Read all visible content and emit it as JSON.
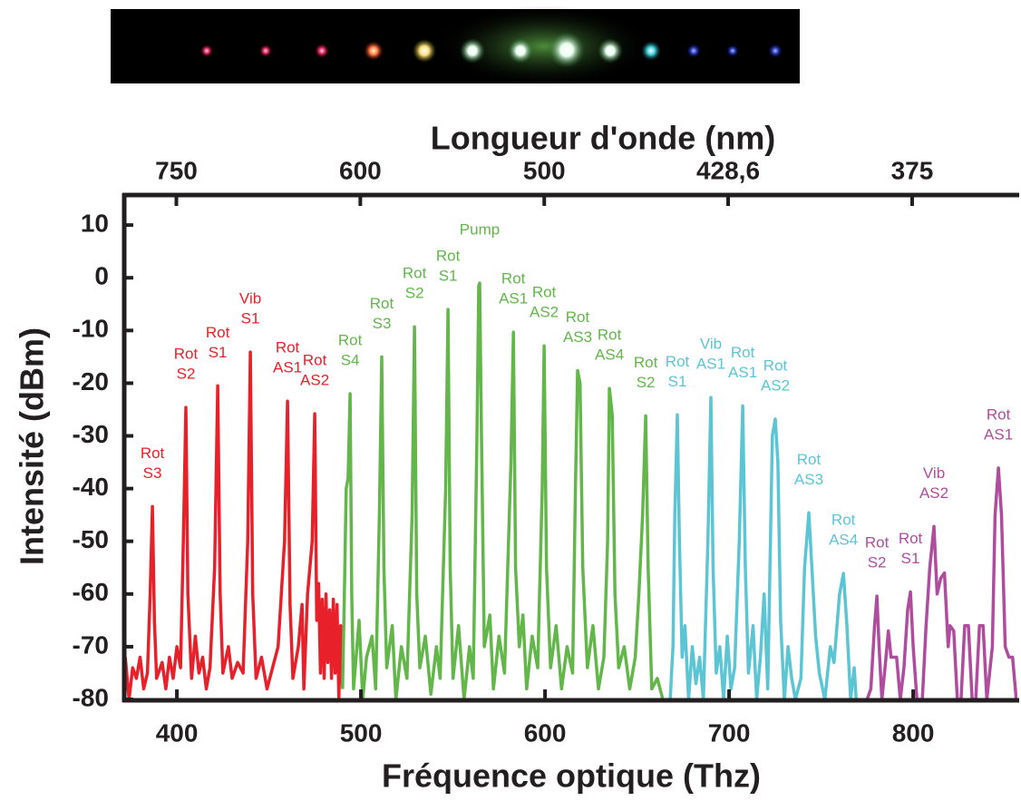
{
  "chart_data": {
    "type": "line",
    "title": "Longueur d'onde (nm)",
    "xlabel": "Fréquence optique (Thz)",
    "ylabel": "Intensité (dBm)",
    "xlim": [
      371.4,
      856.6
    ],
    "ylim": [
      -80,
      15.7
    ],
    "xticks": [
      400,
      500,
      600,
      700,
      800
    ],
    "yticks": [
      10,
      0,
      -10,
      -20,
      -30,
      -40,
      -50,
      -60,
      -70,
      -80
    ],
    "x2ticks": [
      {
        "value": 750,
        "label": "750"
      },
      {
        "value": 600,
        "label": "600"
      },
      {
        "value": 500,
        "label": "500"
      },
      {
        "value": 428.6,
        "label": "428,6"
      },
      {
        "value": 375,
        "label": "375"
      }
    ],
    "series": [
      {
        "color": "#e8202a",
        "x": [
          372,
          374,
          376,
          378,
          380,
          382,
          384,
          385.5,
          386.7,
          387.8,
          389,
          392,
          394,
          396,
          398,
          400,
          402,
          403.5,
          404.9,
          406,
          408,
          410,
          412,
          414,
          416,
          418,
          420.5,
          422.2,
          423.5,
          425,
          428,
          430,
          433,
          436,
          438.5,
          439.9,
          441.2,
          443,
          446,
          449,
          452,
          455,
          458.5,
          460.1,
          461.5,
          463,
          466,
          468,
          469,
          471,
          473.5,
          474.9,
          476,
          477,
          478,
          479,
          480,
          481,
          482,
          483,
          484,
          485,
          486,
          487,
          488,
          489,
          490
        ],
        "values": [
          -72,
          -80,
          -74,
          -76,
          -72,
          -78,
          -75,
          -60,
          -43.4,
          -65,
          -76,
          -73,
          -78,
          -72,
          -76,
          -70,
          -74,
          -50,
          -24.6,
          -60,
          -76,
          -68,
          -75,
          -72,
          -78,
          -74,
          -55,
          -20.5,
          -60,
          -75,
          -70,
          -76,
          -73,
          -75,
          -50,
          -14.1,
          -60,
          -76,
          -72,
          -78,
          -74,
          -70,
          -50,
          -23.4,
          -62,
          -76,
          -70,
          -62,
          -78,
          -60,
          -50,
          -25.8,
          -65,
          -58,
          -75,
          -61,
          -76,
          -60,
          -73,
          -63,
          -76,
          -61,
          -75,
          -62,
          -80,
          -66,
          -78
        ],
        "labels": [
          {
            "text": [
              "Rot",
              "S3"
            ],
            "x": 386.7,
            "y": -43.4
          },
          {
            "text": [
              "Rot",
              "S2"
            ],
            "x": 404.9,
            "y": -24.6
          },
          {
            "text": [
              "Rot",
              "S1"
            ],
            "x": 422.2,
            "y": -20.5
          },
          {
            "text": [
              "Vib",
              "S1"
            ],
            "x": 439.9,
            "y": -14.1
          },
          {
            "text": [
              "Rot",
              "AS1"
            ],
            "x": 460.1,
            "y": -23.4
          },
          {
            "text": [
              "Rot",
              "AS2"
            ],
            "x": 474.9,
            "y": -25.8
          }
        ]
      },
      {
        "color": "#62b64a",
        "x": [
          490,
          491,
          492,
          493,
          494.1,
          495,
          496,
          499,
          501,
          503,
          506,
          508,
          510,
          511.3,
          512.5,
          514,
          517,
          519,
          522,
          525,
          527.8,
          529.1,
          530.3,
          532,
          535,
          538,
          541,
          543,
          546,
          547.3,
          548.5,
          550,
          553,
          556,
          559,
          561,
          563,
          564,
          564.5,
          565.5,
          567,
          570,
          572,
          575,
          578,
          581.5,
          582.8,
          584,
          586,
          588,
          590,
          593,
          596,
          598.5,
          599.5,
          600.8,
          603,
          606,
          609,
          612,
          615,
          616.5,
          617.7,
          619,
          620.5,
          623,
          626,
          629,
          632,
          634,
          635,
          636.5,
          638,
          640,
          643,
          646,
          649,
          651,
          653,
          654.7,
          656,
          658,
          661,
          664
        ],
        "values": [
          -78,
          -60,
          -40,
          -38,
          -22,
          -60,
          -78,
          -65,
          -80,
          -72,
          -68,
          -78,
          -45,
          -15,
          -55,
          -74,
          -66,
          -80,
          -70,
          -76,
          -45,
          -9.3,
          -60,
          -74,
          -68,
          -79,
          -70,
          -76,
          -40,
          -6,
          -55,
          -76,
          -66,
          -80,
          -70,
          -76,
          -30,
          -1.5,
          -1,
          -30,
          -70,
          -64,
          -78,
          -68,
          -75,
          -35,
          -10.3,
          -55,
          -70,
          -64,
          -78,
          -68,
          -74,
          -40,
          -12.9,
          -55,
          -74,
          -66,
          -78,
          -70,
          -75,
          -40,
          -17.6,
          -20,
          -55,
          -74,
          -66,
          -78,
          -72,
          -50,
          -21,
          -26,
          -60,
          -74,
          -70,
          -78,
          -72,
          -60,
          -45,
          -26.2,
          -55,
          -78,
          -76,
          -80
        ],
        "labels": [
          {
            "text": [
              "Rot",
              "S4"
            ],
            "x": 494.1,
            "y": -22
          },
          {
            "text": [
              "Rot",
              "S3"
            ],
            "x": 511.3,
            "y": -15
          },
          {
            "text": [
              "Rot",
              "S2"
            ],
            "x": 529.1,
            "y": -9.3
          },
          {
            "text": [
              "Rot",
              "S1"
            ],
            "x": 547.3,
            "y": -6
          },
          {
            "text": [
              "Pump"
            ],
            "x": 564.5,
            "y": -1
          },
          {
            "text": [
              "Rot",
              "AS1"
            ],
            "x": 582.8,
            "y": -10.3
          },
          {
            "text": [
              "Rot",
              "AS2"
            ],
            "x": 599.5,
            "y": -12.9
          },
          {
            "text": [
              "Rot",
              "AS3"
            ],
            "x": 617.7,
            "y": -17.6
          },
          {
            "text": [
              "Rot",
              "AS4"
            ],
            "x": 635,
            "y": -21
          },
          {
            "text": [
              "Rot",
              "S2"
            ],
            "x": 654.7,
            "y": -26.2
          }
        ]
      },
      {
        "color": "#5bc5d4",
        "x": [
          668,
          669.5,
          670.5,
          671.9,
          673,
          674.5,
          676,
          678,
          680,
          682,
          684,
          686,
          688.5,
          690.1,
          691.3,
          693,
          695,
          697,
          699,
          701,
          703,
          705.5,
          707.4,
          708.8,
          710.5,
          713,
          715,
          717,
          719,
          721,
          723.5,
          725.1,
          726.5,
          728,
          730,
          732,
          734,
          736,
          739,
          741,
          743.3,
          745,
          747,
          749,
          752,
          755,
          757,
          760,
          762.1,
          764,
          766,
          768,
          769
        ],
        "values": [
          -80,
          -70,
          -45,
          -26,
          -50,
          -72,
          -66,
          -80,
          -70,
          -77,
          -72,
          -80,
          -50,
          -22.7,
          -55,
          -75,
          -70,
          -80,
          -68,
          -78,
          -74,
          -50,
          -24.3,
          -55,
          -75,
          -66,
          -80,
          -72,
          -60,
          -78,
          -30,
          -26.8,
          -35,
          -65,
          -80,
          -70,
          -76,
          -80,
          -76,
          -55,
          -44.6,
          -55,
          -68,
          -75,
          -80,
          -70,
          -73,
          -60,
          -56.1,
          -66,
          -80,
          -74,
          -80
        ],
        "labels": [
          {
            "text": [
              "Rot",
              "S1"
            ],
            "x": 671.9,
            "y": -26
          },
          {
            "text": [
              "Vib",
              "AS1"
            ],
            "x": 690.1,
            "y": -22.7
          },
          {
            "text": [
              "Rot",
              "AS1"
            ],
            "x": 707.4,
            "y": -24.3
          },
          {
            "text": [
              "Rot",
              "AS2"
            ],
            "x": 725.1,
            "y": -26.8
          },
          {
            "text": [
              "Rot",
              "AS3"
            ],
            "x": 743.3,
            "y": -44.6
          },
          {
            "text": [
              "Rot",
              "AS4"
            ],
            "x": 762.1,
            "y": -56.1
          }
        ]
      },
      {
        "color": "#b04c9e",
        "x": [
          775,
          777,
          779,
          780.3,
          781.5,
          783,
          785,
          786.5,
          788,
          791,
          793,
          795,
          797,
          798.5,
          800,
          802,
          805,
          807,
          809,
          811.3,
          813,
          815,
          817,
          819,
          820,
          822,
          824,
          826,
          828,
          830,
          832,
          834,
          836,
          838,
          840,
          843,
          844.5,
          846.3,
          848,
          850,
          852,
          854,
          856
        ],
        "values": [
          -80,
          -78,
          -66,
          -60.4,
          -70,
          -80,
          -73,
          -67,
          -72,
          -72,
          -80,
          -74,
          -63,
          -59.6,
          -70,
          -80,
          -80,
          -66,
          -55,
          -47.2,
          -60,
          -57,
          -56,
          -70,
          -66,
          -67,
          -80,
          -80,
          -66,
          -66,
          -80,
          -80,
          -66,
          -66,
          -80,
          -70,
          -45,
          -36.1,
          -45,
          -70,
          -72,
          -72,
          -80
        ],
        "labels": [
          {
            "text": [
              "Rot",
              "S2"
            ],
            "x": 780.3,
            "y": -60.4
          },
          {
            "text": [
              "Rot",
              "S1"
            ],
            "x": 798.5,
            "y": -59.6
          },
          {
            "text": [
              "Vib",
              "AS2"
            ],
            "x": 811.3,
            "y": -47.2
          },
          {
            "text": [
              "Rot",
              "AS1"
            ],
            "x": 846.3,
            "y": -36.1
          }
        ]
      }
    ]
  }
}
